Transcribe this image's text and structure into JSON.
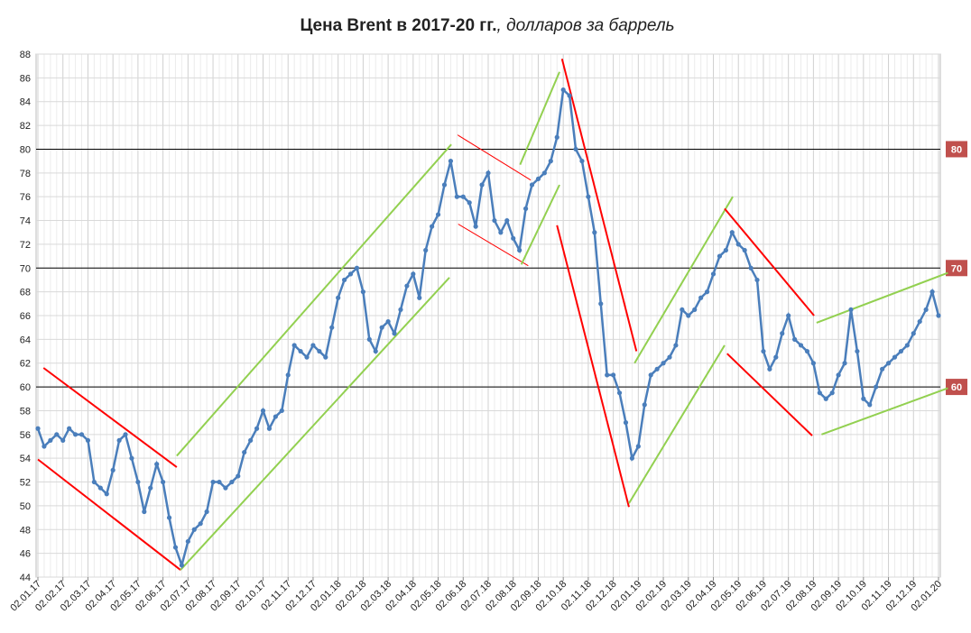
{
  "chart_data": {
    "type": "line",
    "title": "Цена Brent в 2017-20 гг.",
    "subtitle": ", долларов за баррель",
    "categories": [
      "02.01.17",
      null,
      null,
      null,
      "02.02.17",
      null,
      null,
      null,
      "02.03.17",
      null,
      null,
      null,
      "02.04.17",
      null,
      null,
      null,
      "02.05.17",
      null,
      null,
      null,
      "02.06.17",
      null,
      null,
      null,
      "02.07.17",
      null,
      null,
      null,
      "02.08.17",
      null,
      null,
      null,
      "02.09.17",
      null,
      null,
      null,
      "02.10.17",
      null,
      null,
      null,
      "02.11.17",
      null,
      null,
      null,
      "02.12.17",
      null,
      null,
      null,
      "02.01.18",
      null,
      null,
      null,
      "02.02.18",
      null,
      null,
      null,
      "02.03.18",
      null,
      null,
      null,
      "02.04.18",
      null,
      null,
      null,
      "02.05.18",
      null,
      null,
      null,
      "02.06.18",
      null,
      null,
      null,
      "02.07.18",
      null,
      null,
      null,
      "02.08.18",
      null,
      null,
      null,
      "02.09.18",
      null,
      null,
      null,
      "02.10.18",
      null,
      null,
      null,
      "02.11.18",
      null,
      null,
      null,
      "02.12.18",
      null,
      null,
      null,
      "02.01.19",
      null,
      null,
      null,
      "02.02.19",
      null,
      null,
      null,
      "02.03.19",
      null,
      null,
      null,
      "02.04.19",
      null,
      null,
      null,
      "02.05.19",
      null,
      null,
      null,
      "02.06.19",
      null,
      null,
      null,
      "02.07.19",
      null,
      null,
      null,
      "02.08.19",
      null,
      null,
      null,
      "02.09.19",
      null,
      null,
      null,
      "02.10.19",
      null,
      null,
      null,
      "02.11.19",
      null,
      null,
      null,
      "02.12.19",
      null,
      null,
      null,
      "02.01.20"
    ],
    "series": [
      {
        "name": "Brent",
        "color": "#4a7ebb",
        "values": [
          56.5,
          55,
          55.5,
          56,
          55.5,
          56.5,
          56,
          56,
          55.5,
          52,
          51.5,
          51,
          53,
          55.5,
          56,
          54,
          52,
          49.5,
          51.5,
          53.5,
          52,
          49,
          46.5,
          45,
          47,
          48,
          48.5,
          49.5,
          52,
          52,
          51.5,
          52,
          52.5,
          54.5,
          55.5,
          56.5,
          58,
          56.5,
          57.5,
          58,
          61,
          63.5,
          63,
          62.5,
          63.5,
          63,
          62.5,
          65,
          67.5,
          69,
          69.5,
          70,
          68,
          64,
          63,
          65,
          65.5,
          64.5,
          66.5,
          68.5,
          69.5,
          67.5,
          71.5,
          73.5,
          74.5,
          77,
          79,
          76,
          76,
          75.5,
          73.5,
          77,
          78,
          74,
          73,
          74,
          72.5,
          71.5,
          75,
          77,
          77.5,
          78,
          79,
          81,
          85,
          84.5,
          80,
          79,
          76,
          73,
          67,
          61,
          61,
          59.5,
          57,
          54,
          55,
          58.5,
          61,
          61.5,
          62,
          62.5,
          63.5,
          66.5,
          66,
          66.5,
          67.5,
          68,
          69.5,
          71,
          71.5,
          73,
          72,
          71.5,
          70,
          69,
          63,
          61.5,
          62.5,
          64.5,
          66,
          64,
          63.5,
          63,
          62,
          59.5,
          59,
          59.5,
          61,
          62,
          66.5,
          63,
          59,
          58.5,
          60,
          61.5,
          62,
          62.5,
          63,
          63.5,
          64.5,
          65.5,
          66.5,
          68,
          66
        ]
      }
    ],
    "ylim": [
      44,
      88
    ],
    "yticks": [
      44,
      46,
      48,
      50,
      52,
      54,
      56,
      58,
      60,
      62,
      64,
      66,
      68,
      70,
      72,
      74,
      76,
      78,
      80,
      82,
      84,
      86,
      88
    ],
    "grid": true,
    "hlines": [
      80,
      70,
      60
    ],
    "trend_lines": [
      {
        "color": "#ff0000",
        "x": [
          0.9,
          22.2
        ],
        "y": [
          61.6,
          53.25
        ]
      },
      {
        "color": "#ff0000",
        "x": [
          0,
          22.8
        ],
        "y": [
          53.9,
          44.6
        ]
      },
      {
        "color": "#92d050",
        "x": [
          22.2,
          66.1
        ],
        "y": [
          54.2,
          80.4
        ]
      },
      {
        "color": "#92d050",
        "x": [
          22.8,
          65.8
        ],
        "y": [
          44.6,
          69.2
        ]
      },
      {
        "color": "#ff0000",
        "x": [
          67.1,
          78.8
        ],
        "y": [
          81.2,
          77.4
        ]
      },
      {
        "color": "#ff0000",
        "x": [
          67.2,
          78.4
        ],
        "y": [
          73.7,
          70.2
        ]
      },
      {
        "color": "#92d050",
        "x": [
          77.1,
          83.4
        ],
        "y": [
          78.7,
          86.5
        ]
      },
      {
        "color": "#92d050",
        "x": [
          77.3,
          83.4
        ],
        "y": [
          70.3,
          77
        ]
      },
      {
        "color": "#ff0000",
        "x": [
          83.8,
          95.7
        ],
        "y": [
          87.6,
          63
        ]
      },
      {
        "color": "#ff0000",
        "x": [
          83,
          94.5
        ],
        "y": [
          73.6,
          49.9
        ]
      },
      {
        "color": "#92d050",
        "x": [
          95.4,
          111.1
        ],
        "y": [
          62,
          76
        ]
      },
      {
        "color": "#92d050",
        "x": [
          94.5,
          109.8
        ],
        "y": [
          50.2,
          63.5
        ]
      },
      {
        "color": "#ff0000",
        "x": [
          109.8,
          124.1
        ],
        "y": [
          75,
          66
        ]
      },
      {
        "color": "#ff0000",
        "x": [
          110.2,
          123.8
        ],
        "y": [
          62.8,
          55.9
        ]
      },
      {
        "color": "#92d050",
        "x": [
          124.5,
          145.5
        ],
        "y": [
          65.4,
          69.6
        ]
      },
      {
        "color": "#92d050",
        "x": [
          125.3,
          145.5
        ],
        "y": [
          56,
          59.9
        ]
      }
    ]
  }
}
